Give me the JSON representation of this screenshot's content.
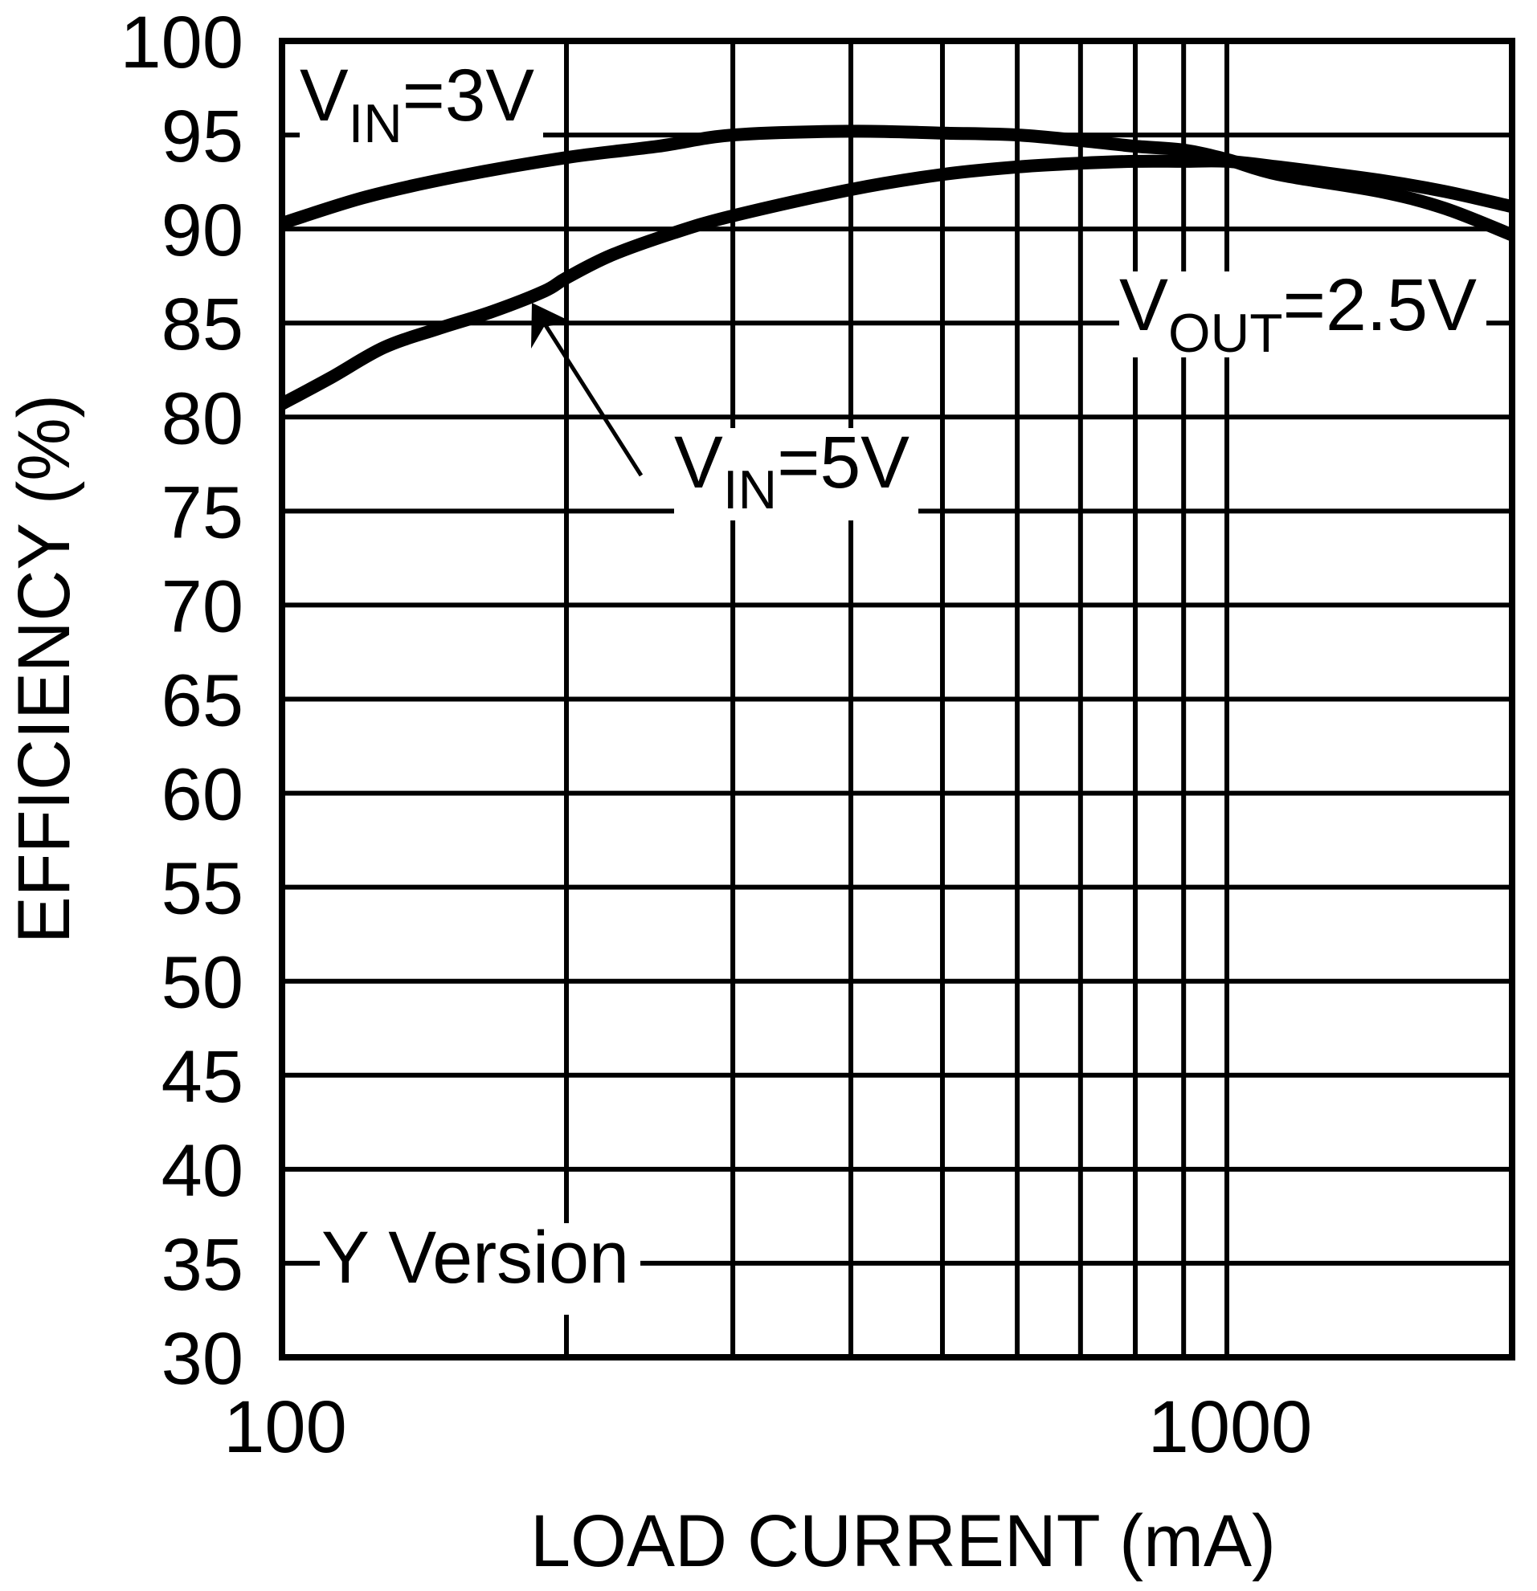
{
  "chart_data": {
    "type": "line",
    "title": "",
    "xlabel": "LOAD CURRENT (mA)",
    "ylabel": "EFFICIENCY (%)",
    "xscale": "log",
    "xlim": [
      100,
      2000
    ],
    "ylim": [
      30,
      100
    ],
    "grid": true,
    "legend": "none (inline annotations)",
    "x_tick_labels": [
      "100",
      "1000"
    ],
    "x_gridlines": [
      200,
      300,
      400,
      500,
      600,
      700,
      800,
      900,
      1000
    ],
    "y_ticks": [
      100,
      95,
      90,
      85,
      80,
      75,
      70,
      65,
      60,
      55,
      50,
      45,
      40,
      35,
      30
    ],
    "series": [
      {
        "name": "VIN=3V",
        "x": [
          100,
          122.6,
          153.5,
          200,
          250,
          300,
          400,
          500,
          600,
          700,
          800,
          900,
          1000,
          1134,
          1450,
          1700,
          2000
        ],
        "y": [
          90.3,
          91.7,
          92.8,
          93.8,
          94.4,
          95.0,
          95.2,
          95.1,
          95.0,
          94.7,
          94.4,
          94.2,
          93.7,
          92.9,
          92.0,
          91.1,
          89.7
        ]
      },
      {
        "name": "VIN=5V",
        "x": [
          100,
          112.7,
          128.2,
          146.3,
          166.7,
          189.6,
          200,
          223,
          260,
          300,
          400,
          500,
          600,
          700,
          800,
          900,
          1000,
          1134,
          1450,
          1700,
          2000
        ],
        "y": [
          80.7,
          82.1,
          83.7,
          84.7,
          85.6,
          86.7,
          87.4,
          88.6,
          89.8,
          90.7,
          92.1,
          92.9,
          93.3,
          93.5,
          93.6,
          93.6,
          93.6,
          93.3,
          92.6,
          92.0,
          91.2
        ]
      }
    ],
    "annotations": [
      {
        "id": "vin3",
        "main": "V",
        "sub": "IN",
        "rest": "=3V"
      },
      {
        "id": "vin5",
        "main": "V",
        "sub": "IN",
        "rest": "=5V",
        "arrow_to_series": "VIN=5V"
      },
      {
        "id": "vout",
        "main": "V",
        "sub": "OUT",
        "rest": "=2.5V"
      },
      {
        "id": "version",
        "text": "Y Version"
      }
    ]
  },
  "colors": {
    "line": "#000000",
    "background": "#ffffff"
  }
}
